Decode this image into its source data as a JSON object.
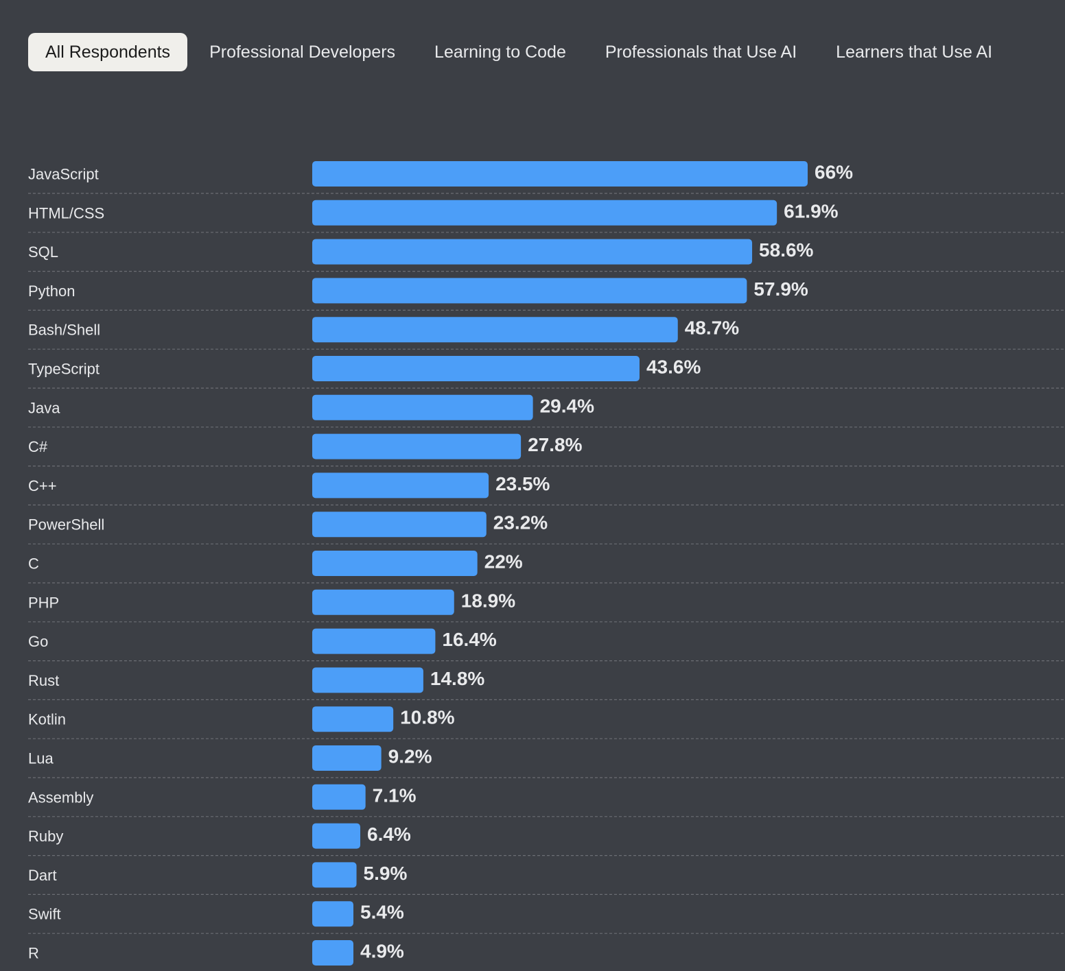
{
  "tabs": [
    {
      "label": "All Respondents",
      "active": true
    },
    {
      "label": "Professional Developers",
      "active": false
    },
    {
      "label": "Learning to Code",
      "active": false
    },
    {
      "label": "Professionals that Use AI",
      "active": false
    },
    {
      "label": "Learners that Use AI",
      "active": false
    }
  ],
  "colors": {
    "bar": "#4c9ef8",
    "background": "#3c3f45",
    "active_tab": "#f0efeb"
  },
  "chart_data": {
    "type": "bar",
    "orientation": "horizontal",
    "title": "",
    "xlabel": "",
    "ylabel": "",
    "xlim": [
      0,
      66
    ],
    "grid": true,
    "categories": [
      "JavaScript",
      "HTML/CSS",
      "SQL",
      "Python",
      "Bash/Shell",
      "TypeScript",
      "Java",
      "C#",
      "C++",
      "PowerShell",
      "C",
      "PHP",
      "Go",
      "Rust",
      "Kotlin",
      "Lua",
      "Assembly",
      "Ruby",
      "Dart",
      "Swift",
      "R"
    ],
    "values": [
      66,
      61.9,
      58.6,
      57.9,
      48.7,
      43.6,
      29.4,
      27.8,
      23.5,
      23.2,
      22,
      18.9,
      16.4,
      14.8,
      10.8,
      9.2,
      7.1,
      6.4,
      5.9,
      5.4,
      4.9
    ],
    "value_labels": [
      "66%",
      "61.9%",
      "58.6%",
      "57.9%",
      "48.7%",
      "43.6%",
      "29.4%",
      "27.8%",
      "23.5%",
      "23.2%",
      "22%",
      "18.9%",
      "16.4%",
      "14.8%",
      "10.8%",
      "9.2%",
      "7.1%",
      "6.4%",
      "5.9%",
      "5.4%",
      "4.9%"
    ],
    "unit": "%"
  }
}
